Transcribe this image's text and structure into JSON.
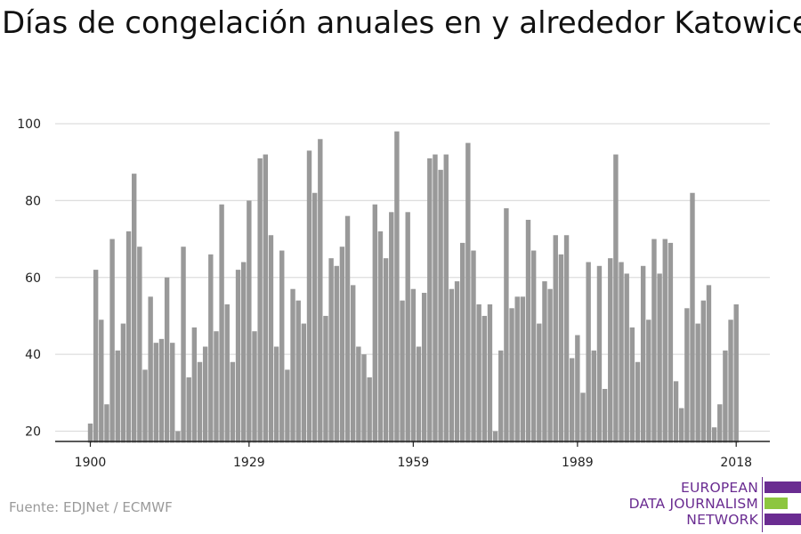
{
  "title": "Días de congelación anuales en y alrededor Katowice",
  "source": "Fuente: EDJNet / ECMWF",
  "logo": {
    "lines": [
      "EUROPEAN",
      "DATA JOURNALISM",
      "NETWORK"
    ],
    "colors": {
      "purple": "#6a2c91",
      "green": "#8dc63f"
    }
  },
  "colors": {
    "bar": "#999999",
    "grid": "#dddddd",
    "axis": "#222222"
  },
  "chart_data": {
    "type": "bar",
    "title": "Días de congelación anuales en y alrededor Katowice",
    "xlabel": "",
    "ylabel": "",
    "ylim": [
      17,
      100
    ],
    "xlim": [
      1899.5,
      2018.5
    ],
    "grid": true,
    "yticks": [
      20,
      40,
      60,
      80,
      100
    ],
    "xticks": [
      1900,
      1929,
      1959,
      1989,
      2018
    ],
    "x": [
      1900,
      1901,
      1902,
      1903,
      1904,
      1905,
      1906,
      1907,
      1908,
      1909,
      1910,
      1911,
      1912,
      1913,
      1914,
      1915,
      1916,
      1917,
      1918,
      1919,
      1920,
      1921,
      1922,
      1923,
      1924,
      1925,
      1926,
      1927,
      1928,
      1929,
      1930,
      1931,
      1932,
      1933,
      1934,
      1935,
      1936,
      1937,
      1938,
      1939,
      1940,
      1941,
      1942,
      1943,
      1944,
      1945,
      1946,
      1947,
      1948,
      1949,
      1950,
      1951,
      1952,
      1953,
      1954,
      1955,
      1956,
      1957,
      1958,
      1959,
      1960,
      1961,
      1962,
      1963,
      1964,
      1965,
      1966,
      1967,
      1968,
      1969,
      1970,
      1971,
      1972,
      1973,
      1974,
      1975,
      1976,
      1977,
      1978,
      1979,
      1980,
      1981,
      1982,
      1983,
      1984,
      1985,
      1986,
      1987,
      1988,
      1989,
      1990,
      1991,
      1992,
      1993,
      1994,
      1995,
      1996,
      1997,
      1998,
      1999,
      2000,
      2001,
      2002,
      2003,
      2004,
      2005,
      2006,
      2007,
      2008,
      2009,
      2010,
      2011,
      2012,
      2013,
      2014,
      2015,
      2016,
      2017,
      2018
    ],
    "values": [
      22,
      62,
      49,
      27,
      70,
      41,
      48,
      72,
      87,
      68,
      36,
      55,
      43,
      44,
      60,
      43,
      20,
      68,
      34,
      47,
      38,
      42,
      66,
      46,
      79,
      53,
      38,
      62,
      64,
      80,
      46,
      91,
      92,
      71,
      42,
      67,
      36,
      57,
      54,
      48,
      93,
      82,
      96,
      50,
      65,
      63,
      68,
      76,
      58,
      42,
      40,
      34,
      79,
      72,
      65,
      77,
      98,
      54,
      77,
      57,
      42,
      56,
      91,
      92,
      88,
      92,
      57,
      59,
      69,
      95,
      67,
      53,
      50,
      53,
      20,
      41,
      78,
      52,
      55,
      55,
      75,
      67,
      48,
      59,
      57,
      71,
      66,
      71,
      39,
      45,
      30,
      64,
      41,
      63,
      31,
      65,
      92,
      64,
      61,
      47,
      38,
      63,
      49,
      70,
      61,
      70,
      69,
      33,
      26,
      52,
      82,
      48,
      54,
      58,
      21,
      27,
      41,
      49,
      53
    ]
  }
}
